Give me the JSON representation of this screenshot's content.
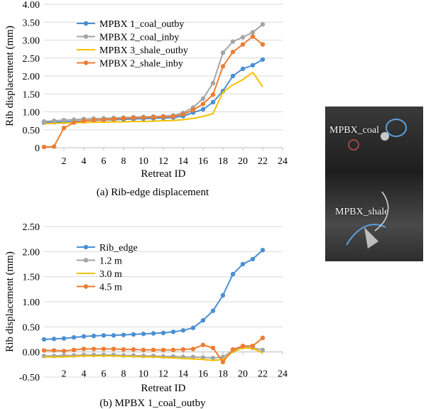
{
  "figure": {
    "photo_label_coal": "MPBX_coal",
    "photo_label_shale": "MPBX_shale"
  },
  "chart_data": [
    {
      "type": "line",
      "caption": "(a) Rib-edge displacement",
      "xlabel": "Retreat ID",
      "ylabel": "Rib displacement (mm)",
      "xlim": [
        0,
        24
      ],
      "ylim": [
        0,
        4
      ],
      "xticks": [
        "2",
        "4",
        "6",
        "8",
        "10",
        "12",
        "14",
        "16",
        "18",
        "20",
        "22",
        "24"
      ],
      "yticks": [
        "0",
        "0.50",
        "1.00",
        "1.50",
        "2.00",
        "2.50",
        "3.00",
        "3.50",
        "4.00"
      ],
      "grid": true,
      "legend_position": "top-left",
      "series": [
        {
          "name": "MPBX 1_coal_outby",
          "color": "#4a8fd4",
          "marker": true,
          "x": [
            0,
            1,
            2,
            3,
            4,
            5,
            6,
            7,
            8,
            9,
            10,
            11,
            12,
            13,
            14,
            15,
            16,
            17,
            18,
            19,
            20,
            21,
            22
          ],
          "y": [
            0.7,
            0.71,
            0.72,
            0.73,
            0.75,
            0.76,
            0.77,
            0.78,
            0.79,
            0.8,
            0.81,
            0.82,
            0.83,
            0.84,
            0.88,
            0.98,
            1.07,
            1.27,
            1.58,
            2.0,
            2.2,
            2.3,
            2.46
          ]
        },
        {
          "name": "MPBX 2_coal_inby",
          "color": "#a5a5a5",
          "marker": true,
          "x": [
            0,
            1,
            2,
            3,
            4,
            5,
            6,
            7,
            8,
            9,
            10,
            11,
            12,
            13,
            14,
            15,
            16,
            17,
            18,
            19,
            20,
            21,
            22
          ],
          "y": [
            0.73,
            0.75,
            0.77,
            0.78,
            0.8,
            0.81,
            0.82,
            0.83,
            0.84,
            0.85,
            0.86,
            0.87,
            0.88,
            0.9,
            0.97,
            1.12,
            1.37,
            1.8,
            2.65,
            2.96,
            3.08,
            3.22,
            3.44
          ]
        },
        {
          "name": "MPBX 3_shale_outby",
          "color": "#f5c000",
          "marker": false,
          "x": [
            0,
            1,
            2,
            3,
            4,
            5,
            6,
            7,
            8,
            9,
            10,
            11,
            12,
            13,
            14,
            15,
            16,
            17,
            18,
            19,
            20,
            21,
            22
          ],
          "y": [
            0.67,
            0.68,
            0.69,
            0.7,
            0.7,
            0.71,
            0.71,
            0.72,
            0.72,
            0.73,
            0.73,
            0.74,
            0.75,
            0.76,
            0.78,
            0.82,
            0.87,
            0.95,
            1.55,
            1.75,
            1.9,
            2.1,
            1.7
          ]
        },
        {
          "name": "MPBX 2_shale_inby",
          "color": "#ed7d31",
          "marker": true,
          "x": [
            0,
            1,
            2,
            3,
            4,
            5,
            6,
            7,
            8,
            9,
            10,
            11,
            12,
            13,
            14,
            15,
            16,
            17,
            18,
            19,
            20,
            21,
            22
          ],
          "y": [
            0.02,
            0.03,
            0.55,
            0.7,
            0.75,
            0.77,
            0.78,
            0.8,
            0.82,
            0.83,
            0.84,
            0.85,
            0.86,
            0.87,
            0.93,
            1.05,
            1.22,
            1.48,
            2.27,
            2.67,
            2.88,
            3.1,
            2.88
          ]
        }
      ]
    },
    {
      "type": "line",
      "caption": "(b) MPBX 1_coal_outby",
      "xlabel": "Retreat ID",
      "ylabel": "Rib displacement (mm)",
      "xlim": [
        0,
        24
      ],
      "ylim": [
        -0.5,
        2.5
      ],
      "xticks": [
        "2",
        "4",
        "6",
        "8",
        "10",
        "12",
        "14",
        "16",
        "18",
        "20",
        "22",
        "24"
      ],
      "yticks": [
        "-0.50",
        "0.00",
        "0.50",
        "1.00",
        "1.50",
        "2.00",
        "2.50"
      ],
      "grid": true,
      "legend_position": "top-left",
      "series": [
        {
          "name": "Rib_edge",
          "color": "#4a8fd4",
          "marker": true,
          "x": [
            0,
            1,
            2,
            3,
            4,
            5,
            6,
            7,
            8,
            9,
            10,
            11,
            12,
            13,
            14,
            15,
            16,
            17,
            18,
            19,
            20,
            21,
            22
          ],
          "y": [
            0.25,
            0.26,
            0.27,
            0.29,
            0.31,
            0.32,
            0.33,
            0.33,
            0.34,
            0.35,
            0.36,
            0.37,
            0.38,
            0.4,
            0.43,
            0.48,
            0.63,
            0.82,
            1.13,
            1.55,
            1.75,
            1.85,
            2.03
          ]
        },
        {
          "name": "1.2 m",
          "color": "#a5a5a5",
          "marker": true,
          "x": [
            0,
            1,
            2,
            3,
            4,
            5,
            6,
            7,
            8,
            9,
            10,
            11,
            12,
            13,
            14,
            15,
            16,
            17,
            18,
            19,
            20,
            21,
            22
          ],
          "y": [
            -0.08,
            -0.08,
            -0.07,
            -0.07,
            -0.06,
            -0.06,
            -0.06,
            -0.06,
            -0.07,
            -0.07,
            -0.08,
            -0.08,
            -0.09,
            -0.09,
            -0.1,
            -0.1,
            -0.11,
            -0.12,
            -0.1,
            0.02,
            0.1,
            0.08,
            0.04
          ]
        },
        {
          "name": "3.0 m",
          "color": "#f5c000",
          "marker": false,
          "x": [
            0,
            1,
            2,
            3,
            4,
            5,
            6,
            7,
            8,
            9,
            10,
            11,
            12,
            13,
            14,
            15,
            16,
            17,
            18,
            19,
            20,
            21,
            22
          ],
          "y": [
            -0.1,
            -0.1,
            -0.1,
            -0.09,
            -0.08,
            -0.08,
            -0.08,
            -0.08,
            -0.09,
            -0.09,
            -0.1,
            -0.1,
            -0.11,
            -0.12,
            -0.13,
            -0.14,
            -0.15,
            -0.17,
            -0.15,
            0.0,
            0.08,
            0.07,
            -0.02
          ]
        },
        {
          "name": "4.5 m",
          "color": "#ed7d31",
          "marker": true,
          "x": [
            0,
            1,
            2,
            3,
            4,
            5,
            6,
            7,
            8,
            9,
            10,
            11,
            12,
            13,
            14,
            15,
            16,
            17,
            18,
            19,
            20,
            21,
            22
          ],
          "y": [
            0.03,
            0.03,
            0.02,
            0.04,
            0.06,
            0.06,
            0.06,
            0.06,
            0.05,
            0.05,
            0.04,
            0.04,
            0.04,
            0.04,
            0.05,
            0.06,
            0.14,
            0.08,
            -0.2,
            0.05,
            0.12,
            0.12,
            0.28
          ]
        }
      ]
    }
  ]
}
